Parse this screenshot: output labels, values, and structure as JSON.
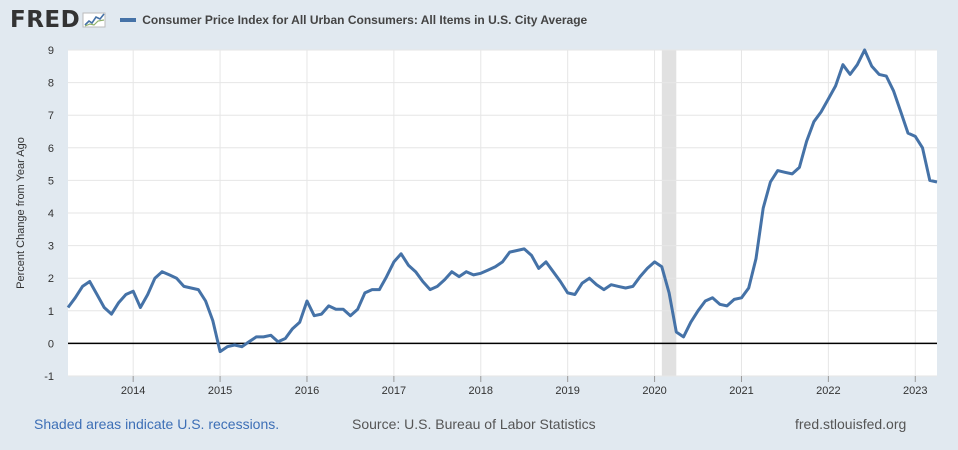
{
  "brand": {
    "logo_text": "FRED",
    "logo_icon": "trend-line-icon"
  },
  "colors": {
    "background": "#e1e9f0",
    "plot_background": "#ffffff",
    "series": "#4572a7",
    "recession": "#e1e1e1",
    "grid": "#e6e6e6",
    "zero_line": "#000000",
    "footer_link": "#3d6fb6"
  },
  "footer": {
    "recession_note": "Shaded areas indicate U.S. recessions.",
    "source": "Source: U.S. Bureau of Labor Statistics",
    "site": "fred.stlouisfed.org"
  },
  "chart_data": {
    "type": "line",
    "title": "",
    "xlabel": "",
    "ylabel": "Percent Change from Year Ago",
    "ylim": [
      -1,
      9
    ],
    "yticks": [
      -1,
      0,
      1,
      2,
      3,
      4,
      5,
      6,
      7,
      8,
      9
    ],
    "xlim": [
      "2013-04",
      "2023-04"
    ],
    "xticks": [
      "2014",
      "2015",
      "2016",
      "2017",
      "2018",
      "2019",
      "2020",
      "2021",
      "2022",
      "2023"
    ],
    "grid": true,
    "legend_position": "top-left",
    "recessions": [
      {
        "start": "2020-02",
        "end": "2020-04"
      }
    ],
    "series": [
      {
        "name": "Consumer Price Index for All Urban Consumers: All Items in U.S. City Average",
        "x": [
          "2013-04",
          "2013-05",
          "2013-06",
          "2013-07",
          "2013-08",
          "2013-09",
          "2013-10",
          "2013-11",
          "2013-12",
          "2014-01",
          "2014-02",
          "2014-03",
          "2014-04",
          "2014-05",
          "2014-06",
          "2014-07",
          "2014-08",
          "2014-09",
          "2014-10",
          "2014-11",
          "2014-12",
          "2015-01",
          "2015-02",
          "2015-03",
          "2015-04",
          "2015-05",
          "2015-06",
          "2015-07",
          "2015-08",
          "2015-09",
          "2015-10",
          "2015-11",
          "2015-12",
          "2016-01",
          "2016-02",
          "2016-03",
          "2016-04",
          "2016-05",
          "2016-06",
          "2016-07",
          "2016-08",
          "2016-09",
          "2016-10",
          "2016-11",
          "2016-12",
          "2017-01",
          "2017-02",
          "2017-03",
          "2017-04",
          "2017-05",
          "2017-06",
          "2017-07",
          "2017-08",
          "2017-09",
          "2017-10",
          "2017-11",
          "2017-12",
          "2018-01",
          "2018-02",
          "2018-03",
          "2018-04",
          "2018-05",
          "2018-06",
          "2018-07",
          "2018-08",
          "2018-09",
          "2018-10",
          "2018-11",
          "2018-12",
          "2019-01",
          "2019-02",
          "2019-03",
          "2019-04",
          "2019-05",
          "2019-06",
          "2019-07",
          "2019-08",
          "2019-09",
          "2019-10",
          "2019-11",
          "2019-12",
          "2020-01",
          "2020-02",
          "2020-03",
          "2020-04",
          "2020-05",
          "2020-06",
          "2020-07",
          "2020-08",
          "2020-09",
          "2020-10",
          "2020-11",
          "2020-12",
          "2021-01",
          "2021-02",
          "2021-03",
          "2021-04",
          "2021-05",
          "2021-06",
          "2021-07",
          "2021-08",
          "2021-09",
          "2021-10",
          "2021-11",
          "2021-12",
          "2022-01",
          "2022-02",
          "2022-03",
          "2022-04",
          "2022-05",
          "2022-06",
          "2022-07",
          "2022-08",
          "2022-09",
          "2022-10",
          "2022-11",
          "2022-12",
          "2023-01",
          "2023-02",
          "2023-03",
          "2023-04"
        ],
        "values": [
          1.1,
          1.4,
          1.75,
          1.9,
          1.5,
          1.1,
          0.9,
          1.25,
          1.5,
          1.6,
          1.1,
          1.5,
          2.0,
          2.2,
          2.1,
          2.0,
          1.75,
          1.7,
          1.65,
          1.3,
          0.7,
          -0.25,
          -0.1,
          -0.05,
          -0.1,
          0.05,
          0.2,
          0.2,
          0.25,
          0.05,
          0.15,
          0.45,
          0.65,
          1.3,
          0.85,
          0.9,
          1.15,
          1.05,
          1.05,
          0.85,
          1.05,
          1.55,
          1.65,
          1.65,
          2.05,
          2.5,
          2.75,
          2.4,
          2.2,
          1.9,
          1.65,
          1.75,
          1.95,
          2.2,
          2.05,
          2.2,
          2.1,
          2.15,
          2.25,
          2.35,
          2.5,
          2.8,
          2.85,
          2.9,
          2.7,
          2.3,
          2.5,
          2.2,
          1.9,
          1.55,
          1.5,
          1.85,
          2.0,
          1.8,
          1.65,
          1.8,
          1.75,
          1.7,
          1.75,
          2.05,
          2.3,
          2.5,
          2.35,
          1.55,
          0.35,
          0.2,
          0.65,
          1.0,
          1.3,
          1.4,
          1.2,
          1.15,
          1.35,
          1.4,
          1.7,
          2.6,
          4.15,
          4.95,
          5.3,
          5.25,
          5.2,
          5.4,
          6.2,
          6.8,
          7.1,
          7.5,
          7.9,
          8.55,
          8.25,
          8.55,
          9.0,
          8.5,
          8.25,
          8.2,
          7.75,
          7.1,
          6.45,
          6.35,
          6.0,
          5.0,
          4.95
        ]
      }
    ]
  }
}
